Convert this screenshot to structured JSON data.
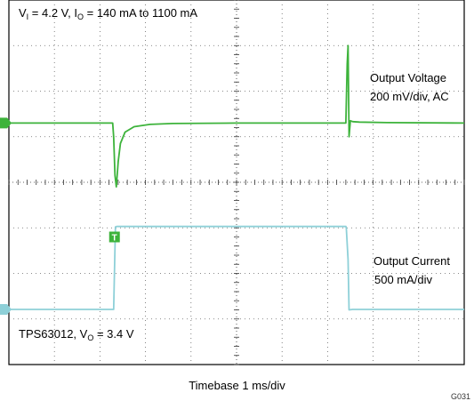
{
  "chart_data": {
    "type": "line",
    "title": "",
    "condition": {
      "V": "V",
      "v_sub": "I",
      "v_value": " = 4.2 V, I",
      "i_sub": "O",
      "i_value": " = 140 mA to 1100 mA"
    },
    "device": {
      "name": "TPS63012, V",
      "sub": "O",
      "value": " = 3.4 V"
    },
    "xlabel": "Timebase 1 ms/div",
    "grid": true,
    "divisions": {
      "x": 10,
      "y": 8
    },
    "x_unit": "ms",
    "xlim": [
      0,
      10
    ],
    "ylim_div": [
      -4,
      4
    ],
    "series": [
      {
        "name": "Output Voltage",
        "scale": "200 mV/div, AC",
        "color": "#3db33b",
        "marker": "1",
        "x": [
          0,
          2.28,
          2.3,
          2.33,
          2.36,
          2.4,
          2.45,
          2.55,
          2.75,
          3.1,
          3.6,
          5.0,
          7.4,
          7.43,
          7.45,
          7.47,
          7.5,
          7.55,
          7.7,
          8.3,
          10
        ],
        "y": [
          1.3,
          1.3,
          1.0,
          0.15,
          -0.1,
          0.45,
          0.85,
          1.1,
          1.22,
          1.27,
          1.29,
          1.3,
          1.3,
          2.6,
          3.0,
          1.0,
          1.35,
          1.33,
          1.32,
          1.31,
          1.3
        ]
      },
      {
        "name": "Output Current",
        "scale": "500 mA/div",
        "color": "#8ed0d8",
        "marker": "2",
        "x": [
          0,
          2.28,
          2.3,
          2.34,
          2.37,
          3.0,
          7.4,
          7.41,
          7.45,
          7.47,
          7.55,
          8.5,
          10
        ],
        "y": [
          -2.79,
          -2.79,
          -2.79,
          -0.98,
          -0.97,
          -0.97,
          -0.97,
          -1.0,
          -1.7,
          -2.8,
          -2.79,
          -2.79,
          -2.79
        ]
      }
    ]
  },
  "figure_id": "G031",
  "markers": {
    "trigger": "T"
  }
}
